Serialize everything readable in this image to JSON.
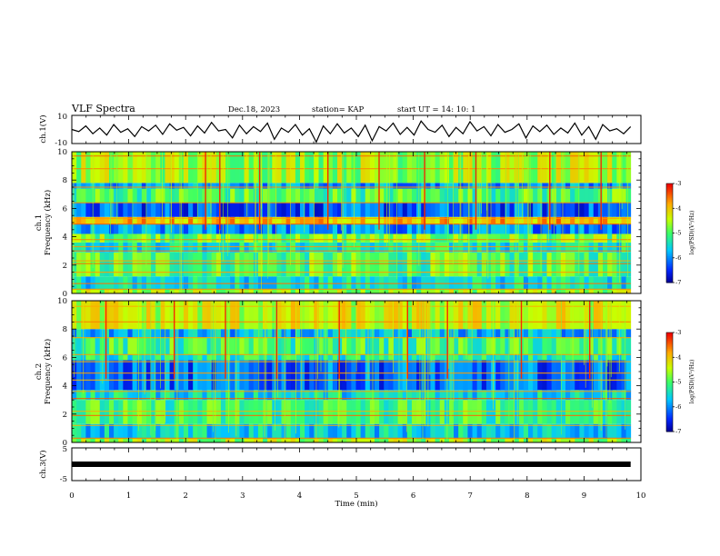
{
  "header": {
    "title": "VLF Spectra",
    "date": "Dec.18, 2023",
    "station": "station= KAP",
    "start": "start  UT  =   14: 10: 1"
  },
  "chart_data": [
    {
      "type": "line",
      "name": "ch1-timeseries",
      "ylabel": "ch.1(V)",
      "xlim": [
        0,
        10
      ],
      "ylim": [
        -10,
        10
      ],
      "yticks": [
        "10",
        "-10"
      ],
      "x_end": 9.82,
      "series": [
        {
          "values": [
            0,
            -1.5,
            2.5,
            -3,
            1,
            -4,
            3.5,
            -2,
            0.5,
            -5,
            2,
            -1,
            3,
            -3.5,
            4,
            -0.5,
            1.5,
            -4.5,
            2.5,
            -2.5,
            5,
            -1,
            0,
            -6,
            3,
            -3,
            2,
            -1.5,
            4.5,
            -7,
            1,
            -2,
            3.5,
            -4,
            0.5,
            -9,
            2.5,
            -3,
            4,
            -2.5,
            1,
            -5,
            3,
            -8,
            2,
            -1,
            4.5,
            -3.5,
            1.5,
            -4,
            6,
            0,
            -2,
            3,
            -5,
            1.5,
            -3,
            5.5,
            -1,
            2,
            -4.5,
            3.5,
            -2,
            0,
            4,
            -6,
            2.5,
            -1.5,
            3,
            -3.5,
            1,
            -2.5,
            4.5,
            -4,
            2,
            -7,
            3.5,
            -1,
            0.5,
            -3,
            2
          ]
        }
      ]
    },
    {
      "type": "heatmap",
      "name": "ch1-spectrogram",
      "panel_label": "ch.1",
      "ylabel": "Frequency (kHz)",
      "xlim": [
        0,
        10
      ],
      "ylim": [
        0,
        10
      ],
      "yticks": [
        "0",
        "2",
        "4",
        "6",
        "8",
        "10"
      ],
      "x_end": 9.82,
      "colorbar": {
        "label": "log(PSD)(V²/Hz)",
        "range": [
          -7,
          -3
        ],
        "ticks": [
          "-3",
          "-4",
          "-5",
          "-6",
          "-7"
        ]
      },
      "bands": [
        {
          "f0": 0,
          "f1": 0.3,
          "level": -4.6
        },
        {
          "f0": 0.3,
          "f1": 1.2,
          "level": -5.5
        },
        {
          "f0": 1.2,
          "f1": 2.9,
          "level": -5.0
        },
        {
          "f0": 2.9,
          "f1": 3.6,
          "level": -5.4
        },
        {
          "f0": 3.6,
          "f1": 4.2,
          "level": -4.8
        },
        {
          "f0": 4.2,
          "f1": 4.9,
          "level": -6.0
        },
        {
          "f0": 4.9,
          "f1": 5.4,
          "level": -3.9
        },
        {
          "f0": 5.4,
          "f1": 6.4,
          "level": -6.3
        },
        {
          "f0": 6.4,
          "f1": 7.4,
          "level": -5.0
        },
        {
          "f0": 7.4,
          "f1": 7.8,
          "level": -5.9
        },
        {
          "f0": 7.8,
          "f1": 10,
          "level": -4.6
        }
      ],
      "lines_khz": [
        0.3,
        0.7,
        1.5,
        2.1,
        2.3,
        3.0,
        3.3,
        3.8,
        4.9,
        5.3,
        6.4,
        7.5,
        8.8,
        9.7
      ],
      "bursts_min": [
        2.35,
        2.6,
        3.3,
        4.5,
        5.4,
        6.2,
        7.1,
        8.4,
        9.3
      ]
    },
    {
      "type": "heatmap",
      "name": "ch2-spectrogram",
      "panel_label": "ch.2",
      "ylabel": "Frequency (kHz)",
      "xlim": [
        0,
        10
      ],
      "ylim": [
        0,
        10
      ],
      "yticks": [
        "0",
        "2",
        "4",
        "6",
        "8",
        "10"
      ],
      "x_end": 9.82,
      "colorbar": {
        "label": "log(PSD)(V²/Hz)",
        "range": [
          -7,
          -3
        ],
        "ticks": [
          "-3",
          "-4",
          "-5",
          "-6",
          "-7"
        ]
      },
      "bands": [
        {
          "f0": 0,
          "f1": 0.3,
          "level": -4.6
        },
        {
          "f0": 0.3,
          "f1": 1.3,
          "level": -5.6
        },
        {
          "f0": 1.3,
          "f1": 3.0,
          "level": -5.1
        },
        {
          "f0": 3.0,
          "f1": 3.7,
          "level": -5.5
        },
        {
          "f0": 3.7,
          "f1": 5.8,
          "level": -6.2
        },
        {
          "f0": 5.8,
          "f1": 6.2,
          "level": -5.3
        },
        {
          "f0": 6.2,
          "f1": 7.4,
          "level": -5.1
        },
        {
          "f0": 7.4,
          "f1": 8.0,
          "level": -5.8
        },
        {
          "f0": 8.0,
          "f1": 10,
          "level": -4.4
        }
      ],
      "lines_khz": [
        0.3,
        1.2,
        1.9,
        2.2,
        3.1,
        3.6,
        4.4,
        4.9,
        5.7,
        6.2,
        7.4,
        8.5,
        9.6
      ],
      "bursts_min": [
        0.6,
        1.8,
        2.7,
        3.6,
        4.7,
        5.9,
        6.6,
        7.9,
        9.1
      ]
    },
    {
      "type": "line",
      "name": "ch3-timeseries",
      "ylabel": "ch.3(V)",
      "xlabel": "Time (min)",
      "xlim": [
        0,
        10
      ],
      "ylim": [
        -5,
        5
      ],
      "yticks": [
        "5",
        "0",
        "-5"
      ],
      "xticks": [
        "0",
        "1",
        "2",
        "3",
        "4",
        "5",
        "6",
        "7",
        "8",
        "9",
        "10"
      ],
      "x_end": 9.82,
      "series": [
        {
          "values": [
            0,
            0
          ]
        }
      ]
    }
  ]
}
